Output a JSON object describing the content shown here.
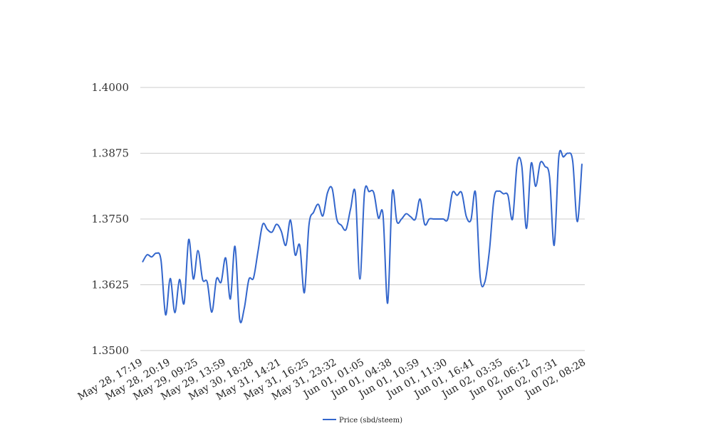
{
  "chart_data": {
    "type": "line",
    "title": "",
    "xlabel": "",
    "ylabel": "",
    "ylim": [
      1.35,
      1.4
    ],
    "yticks": [
      "1.3500",
      "1.3625",
      "1.3750",
      "1.3875",
      "1.4000"
    ],
    "xtick_labels": [
      "May 28, 17:19",
      "May 28, 20:19",
      "May 29, 09:25",
      "May 29, 13:59",
      "May 30, 18:28",
      "May 31, 14:21",
      "May 31, 16:25",
      "May 31, 23:32",
      "Jun 01, 01:05",
      "Jun 01, 04:38",
      "Jun 01, 10:59",
      "Jun 01, 11:30",
      "Jun 01, 16:41",
      "Jun 02, 03:35",
      "Jun 02, 06:12",
      "Jun 02, 07:31",
      "Jun 02, 08:28"
    ],
    "grid": true,
    "legend_position": "bottom",
    "series": [
      {
        "name": "Price (sbd/steem)",
        "color": "#3366cc",
        "values": [
          1.3668,
          1.3682,
          1.3678,
          1.3685,
          1.3672,
          1.3568,
          1.3637,
          1.3572,
          1.3635,
          1.359,
          1.3711,
          1.3636,
          1.369,
          1.3635,
          1.363,
          1.3573,
          1.3636,
          1.363,
          1.3676,
          1.3598,
          1.3698,
          1.356,
          1.358,
          1.3635,
          1.3638,
          1.369,
          1.374,
          1.373,
          1.3725,
          1.374,
          1.3727,
          1.37,
          1.3748,
          1.3682,
          1.37,
          1.361,
          1.3739,
          1.3763,
          1.3778,
          1.3756,
          1.38,
          1.3808,
          1.375,
          1.3738,
          1.373,
          1.377,
          1.38,
          1.3636,
          1.38,
          1.3802,
          1.38,
          1.3752,
          1.3758,
          1.359,
          1.38,
          1.3745,
          1.375,
          1.376,
          1.3754,
          1.375,
          1.3788,
          1.374,
          1.375,
          1.375,
          1.375,
          1.375,
          1.375,
          1.38,
          1.3795,
          1.38,
          1.3755,
          1.3748,
          1.38,
          1.364,
          1.363,
          1.369,
          1.379,
          1.3803,
          1.3798,
          1.3795,
          1.375,
          1.3856,
          1.385,
          1.3732,
          1.3855,
          1.3812,
          1.3857,
          1.385,
          1.383,
          1.37,
          1.3868,
          1.3868,
          1.3875,
          1.386,
          1.3745,
          1.3855
        ]
      }
    ]
  }
}
